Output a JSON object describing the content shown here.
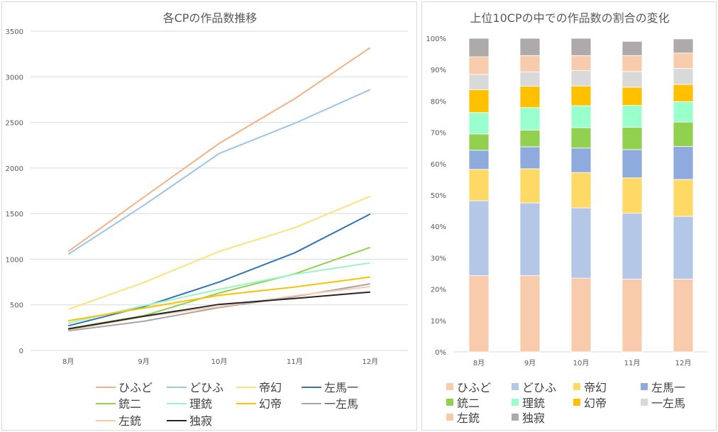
{
  "chart_data": [
    {
      "type": "line",
      "title": "各CPの作品数推移",
      "categories": [
        "8月",
        "9月",
        "10月",
        "11月",
        "12月"
      ],
      "ylim": [
        0,
        3500
      ],
      "yticks": [
        "0",
        "500",
        "1000",
        "1500",
        "2000",
        "2500",
        "3000",
        "3500"
      ],
      "grid": true,
      "legend_position": "bottom",
      "series": [
        {
          "name": "ひふど",
          "color": "#F4B183",
          "values": [
            1085,
            1680,
            2270,
            2760,
            3320
          ]
        },
        {
          "name": "どひふ",
          "color": "#9DC3E6",
          "values": [
            1055,
            1590,
            2160,
            2490,
            2860
          ]
        },
        {
          "name": "帝幻",
          "color": "#FFE07A",
          "values": [
            450,
            745,
            1085,
            1345,
            1690
          ]
        },
        {
          "name": "左馬一",
          "color": "#2E75B6",
          "values": [
            270,
            480,
            750,
            1070,
            1495
          ]
        },
        {
          "name": "銃二",
          "color": "#92D050",
          "values": [
            240,
            380,
            630,
            840,
            1130
          ]
        },
        {
          "name": "理銃",
          "color": "#99F5C8",
          "values": [
            300,
            490,
            670,
            835,
            960
          ]
        },
        {
          "name": "幻帝",
          "color": "#FFC000",
          "values": [
            325,
            465,
            605,
            695,
            805
          ]
        },
        {
          "name": "一左馬",
          "color": "#A9A5A5",
          "values": [
            215,
            320,
            470,
            590,
            730
          ]
        },
        {
          "name": "左銃",
          "color": "#F8CBAD",
          "values": [
            225,
            370,
            480,
            600,
            700
          ]
        },
        {
          "name": "独寂",
          "color": "#262626",
          "values": [
            235,
            375,
            505,
            570,
            640
          ]
        }
      ]
    },
    {
      "type": "stacked_bar",
      "title": "上位10CPの中での作品数の割合の変化",
      "categories": [
        "8月",
        "9月",
        "10月",
        "11月",
        "12月"
      ],
      "ylim": [
        0,
        100
      ],
      "yticks": [
        "0%",
        "10%",
        "20%",
        "30%",
        "40%",
        "50%",
        "60%",
        "70%",
        "80%",
        "90%",
        "100%"
      ],
      "legend_position": "bottom",
      "series": [
        {
          "name": "ひふど",
          "color": "#F8CBAD",
          "values": [
            24.3,
            24.3,
            23.5,
            23.2,
            23.2
          ]
        },
        {
          "name": "どひふ",
          "color": "#B4C7E7",
          "values": [
            23.9,
            23.2,
            22.4,
            21.0,
            20.0
          ]
        },
        {
          "name": "帝幻",
          "color": "#FFD966",
          "values": [
            10.0,
            10.9,
            11.3,
            11.3,
            11.8
          ]
        },
        {
          "name": "左馬一",
          "color": "#8FAADC",
          "values": [
            6.1,
            7.0,
            7.8,
            9.0,
            10.5
          ]
        },
        {
          "name": "銃二",
          "color": "#92D050",
          "values": [
            5.2,
            5.3,
            6.5,
            7.1,
            7.8
          ]
        },
        {
          "name": "理銃",
          "color": "#99FFCC",
          "values": [
            6.8,
            7.2,
            7.0,
            7.0,
            6.5
          ]
        },
        {
          "name": "幻帝",
          "color": "#FFC000",
          "values": [
            7.3,
            6.8,
            6.3,
            5.8,
            5.5
          ]
        },
        {
          "name": "一左馬",
          "color": "#D9D9D9",
          "values": [
            4.9,
            4.6,
            4.9,
            5.0,
            5.1
          ]
        },
        {
          "name": "左銃",
          "color": "#F8CBAD",
          "values": [
            5.6,
            5.2,
            4.8,
            5.1,
            4.9
          ]
        },
        {
          "name": "独寂",
          "color": "#AEAAAA",
          "values": [
            5.9,
            5.5,
            5.5,
            4.5,
            4.5
          ]
        }
      ]
    }
  ]
}
